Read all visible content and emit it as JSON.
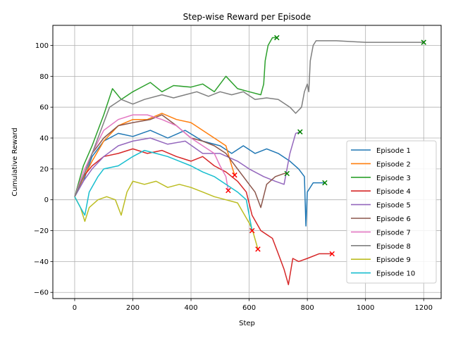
{
  "chart_data": {
    "type": "line",
    "title": "Step-wise Reward per Episode",
    "xlabel": "Step",
    "ylabel": "Cumulative Reward",
    "xlim": [
      -75,
      1260
    ],
    "ylim": [
      -64,
      113
    ],
    "xticks": [
      0,
      200,
      400,
      600,
      800,
      1000,
      1200
    ],
    "yticks": [
      -60,
      -40,
      -20,
      0,
      20,
      40,
      60,
      80,
      100
    ],
    "grid": true,
    "legend_position": "lower-right",
    "series": [
      {
        "name": "Episode 1",
        "color": "#1f77b4",
        "end_marker_color": "#008000",
        "points": [
          [
            0,
            2
          ],
          [
            30,
            12
          ],
          [
            60,
            28
          ],
          [
            100,
            38
          ],
          [
            150,
            43
          ],
          [
            200,
            41
          ],
          [
            260,
            45
          ],
          [
            320,
            40
          ],
          [
            380,
            45
          ],
          [
            440,
            38
          ],
          [
            500,
            35
          ],
          [
            540,
            30
          ],
          [
            580,
            35
          ],
          [
            620,
            30
          ],
          [
            660,
            33
          ],
          [
            700,
            30
          ],
          [
            740,
            25
          ],
          [
            770,
            20
          ],
          [
            790,
            15
          ],
          [
            795,
            -17
          ],
          [
            800,
            5
          ],
          [
            820,
            11
          ],
          [
            860,
            11
          ]
        ],
        "end": [
          860,
          11
        ]
      },
      {
        "name": "Episode 2",
        "color": "#ff7f0e",
        "end_marker_color": "#ff0000",
        "points": [
          [
            0,
            2
          ],
          [
            30,
            14
          ],
          [
            60,
            25
          ],
          [
            100,
            38
          ],
          [
            150,
            48
          ],
          [
            200,
            52
          ],
          [
            250,
            52
          ],
          [
            300,
            56
          ],
          [
            350,
            52
          ],
          [
            400,
            50
          ],
          [
            440,
            45
          ],
          [
            480,
            40
          ],
          [
            520,
            35
          ],
          [
            540,
            22
          ],
          [
            550,
            16
          ]
        ],
        "end": [
          550,
          16
        ]
      },
      {
        "name": "Episode 3",
        "color": "#2ca02c",
        "end_marker_color": "#008000",
        "points": [
          [
            0,
            2
          ],
          [
            30,
            22
          ],
          [
            60,
            35
          ],
          [
            100,
            55
          ],
          [
            130,
            72
          ],
          [
            160,
            65
          ],
          [
            200,
            70
          ],
          [
            260,
            76
          ],
          [
            300,
            70
          ],
          [
            340,
            74
          ],
          [
            400,
            73
          ],
          [
            440,
            75
          ],
          [
            480,
            70
          ],
          [
            520,
            80
          ],
          [
            560,
            72
          ],
          [
            600,
            70
          ],
          [
            640,
            68
          ],
          [
            650,
            75
          ],
          [
            655,
            90
          ],
          [
            665,
            100
          ],
          [
            680,
            105
          ],
          [
            695,
            105
          ]
        ],
        "end": [
          695,
          105
        ]
      },
      {
        "name": "Episode 4",
        "color": "#d62728",
        "end_marker_color": "#ff0000",
        "points": [
          [
            0,
            2
          ],
          [
            30,
            15
          ],
          [
            60,
            22
          ],
          [
            100,
            28
          ],
          [
            150,
            30
          ],
          [
            200,
            33
          ],
          [
            250,
            30
          ],
          [
            300,
            32
          ],
          [
            350,
            28
          ],
          [
            400,
            25
          ],
          [
            440,
            28
          ],
          [
            480,
            22
          ],
          [
            520,
            18
          ],
          [
            560,
            12
          ],
          [
            590,
            5
          ],
          [
            610,
            -10
          ],
          [
            640,
            -20
          ],
          [
            680,
            -25
          ],
          [
            700,
            -35
          ],
          [
            720,
            -45
          ],
          [
            735,
            -55
          ],
          [
            750,
            -38
          ],
          [
            770,
            -40
          ],
          [
            800,
            -38
          ],
          [
            840,
            -35
          ],
          [
            870,
            -35
          ],
          [
            885,
            -35
          ]
        ],
        "end": [
          885,
          -35
        ]
      },
      {
        "name": "Episode 5",
        "color": "#9467bd",
        "end_marker_color": "#008000",
        "points": [
          [
            0,
            2
          ],
          [
            30,
            12
          ],
          [
            60,
            20
          ],
          [
            100,
            28
          ],
          [
            150,
            35
          ],
          [
            200,
            38
          ],
          [
            260,
            40
          ],
          [
            320,
            36
          ],
          [
            380,
            38
          ],
          [
            440,
            30
          ],
          [
            500,
            30
          ],
          [
            560,
            25
          ],
          [
            600,
            20
          ],
          [
            650,
            15
          ],
          [
            690,
            12
          ],
          [
            720,
            10
          ],
          [
            740,
            30
          ],
          [
            760,
            43
          ],
          [
            775,
            44
          ]
        ],
        "end": [
          775,
          44
        ]
      },
      {
        "name": "Episode 6",
        "color": "#8c564b",
        "end_marker_color": "#008000",
        "points": [
          [
            0,
            2
          ],
          [
            30,
            15
          ],
          [
            60,
            30
          ],
          [
            100,
            40
          ],
          [
            150,
            48
          ],
          [
            200,
            50
          ],
          [
            260,
            52
          ],
          [
            300,
            55
          ],
          [
            350,
            48
          ],
          [
            400,
            40
          ],
          [
            440,
            38
          ],
          [
            480,
            35
          ],
          [
            520,
            30
          ],
          [
            560,
            20
          ],
          [
            600,
            10
          ],
          [
            620,
            5
          ],
          [
            640,
            -5
          ],
          [
            660,
            10
          ],
          [
            690,
            15
          ],
          [
            720,
            17
          ],
          [
            730,
            17
          ]
        ],
        "end": [
          730,
          17
        ]
      },
      {
        "name": "Episode 7",
        "color": "#e377c2",
        "end_marker_color": "#ff0000",
        "points": [
          [
            0,
            2
          ],
          [
            30,
            18
          ],
          [
            60,
            30
          ],
          [
            100,
            45
          ],
          [
            150,
            52
          ],
          [
            200,
            55
          ],
          [
            250,
            55
          ],
          [
            300,
            52
          ],
          [
            350,
            48
          ],
          [
            400,
            40
          ],
          [
            440,
            35
          ],
          [
            480,
            30
          ],
          [
            500,
            22
          ],
          [
            520,
            15
          ],
          [
            528,
            6
          ]
        ],
        "end": [
          528,
          6
        ]
      },
      {
        "name": "Episode 8",
        "color": "#7f7f7f",
        "end_marker_color": "#008000",
        "points": [
          [
            0,
            2
          ],
          [
            40,
            20
          ],
          [
            80,
            40
          ],
          [
            120,
            60
          ],
          [
            160,
            65
          ],
          [
            200,
            62
          ],
          [
            240,
            65
          ],
          [
            300,
            68
          ],
          [
            340,
            66
          ],
          [
            380,
            68
          ],
          [
            420,
            70
          ],
          [
            460,
            67
          ],
          [
            500,
            70
          ],
          [
            540,
            68
          ],
          [
            580,
            70
          ],
          [
            620,
            65
          ],
          [
            660,
            66
          ],
          [
            700,
            65
          ],
          [
            740,
            60
          ],
          [
            760,
            56
          ],
          [
            780,
            60
          ],
          [
            790,
            70
          ],
          [
            800,
            75
          ],
          [
            805,
            70
          ],
          [
            810,
            90
          ],
          [
            820,
            100
          ],
          [
            830,
            103
          ],
          [
            900,
            103
          ],
          [
            1000,
            102
          ],
          [
            1100,
            102
          ],
          [
            1200,
            102
          ]
        ],
        "end": [
          1200,
          102
        ]
      },
      {
        "name": "Episode 9",
        "color": "#bcbd22",
        "end_marker_color": "#ff0000",
        "points": [
          [
            0,
            2
          ],
          [
            20,
            -5
          ],
          [
            35,
            -14
          ],
          [
            50,
            -5
          ],
          [
            80,
            0
          ],
          [
            110,
            2
          ],
          [
            140,
            0
          ],
          [
            160,
            -10
          ],
          [
            180,
            5
          ],
          [
            200,
            12
          ],
          [
            240,
            10
          ],
          [
            280,
            12
          ],
          [
            320,
            8
          ],
          [
            360,
            10
          ],
          [
            400,
            8
          ],
          [
            440,
            5
          ],
          [
            480,
            2
          ],
          [
            520,
            0
          ],
          [
            560,
            -2
          ],
          [
            600,
            -15
          ],
          [
            612,
            -20
          ],
          [
            630,
            -32
          ]
        ],
        "end": [
          630,
          -32
        ]
      },
      {
        "name": "Episode 10",
        "color": "#17becf",
        "end_marker_color": "#ff0000",
        "points": [
          [
            0,
            2
          ],
          [
            20,
            -5
          ],
          [
            35,
            -10
          ],
          [
            50,
            5
          ],
          [
            80,
            15
          ],
          [
            100,
            20
          ],
          [
            150,
            22
          ],
          [
            200,
            28
          ],
          [
            240,
            32
          ],
          [
            280,
            30
          ],
          [
            320,
            28
          ],
          [
            360,
            25
          ],
          [
            400,
            22
          ],
          [
            440,
            18
          ],
          [
            480,
            15
          ],
          [
            520,
            10
          ],
          [
            560,
            5
          ],
          [
            590,
            0
          ],
          [
            610,
            -20
          ]
        ],
        "end": [
          610,
          -20
        ]
      }
    ]
  }
}
